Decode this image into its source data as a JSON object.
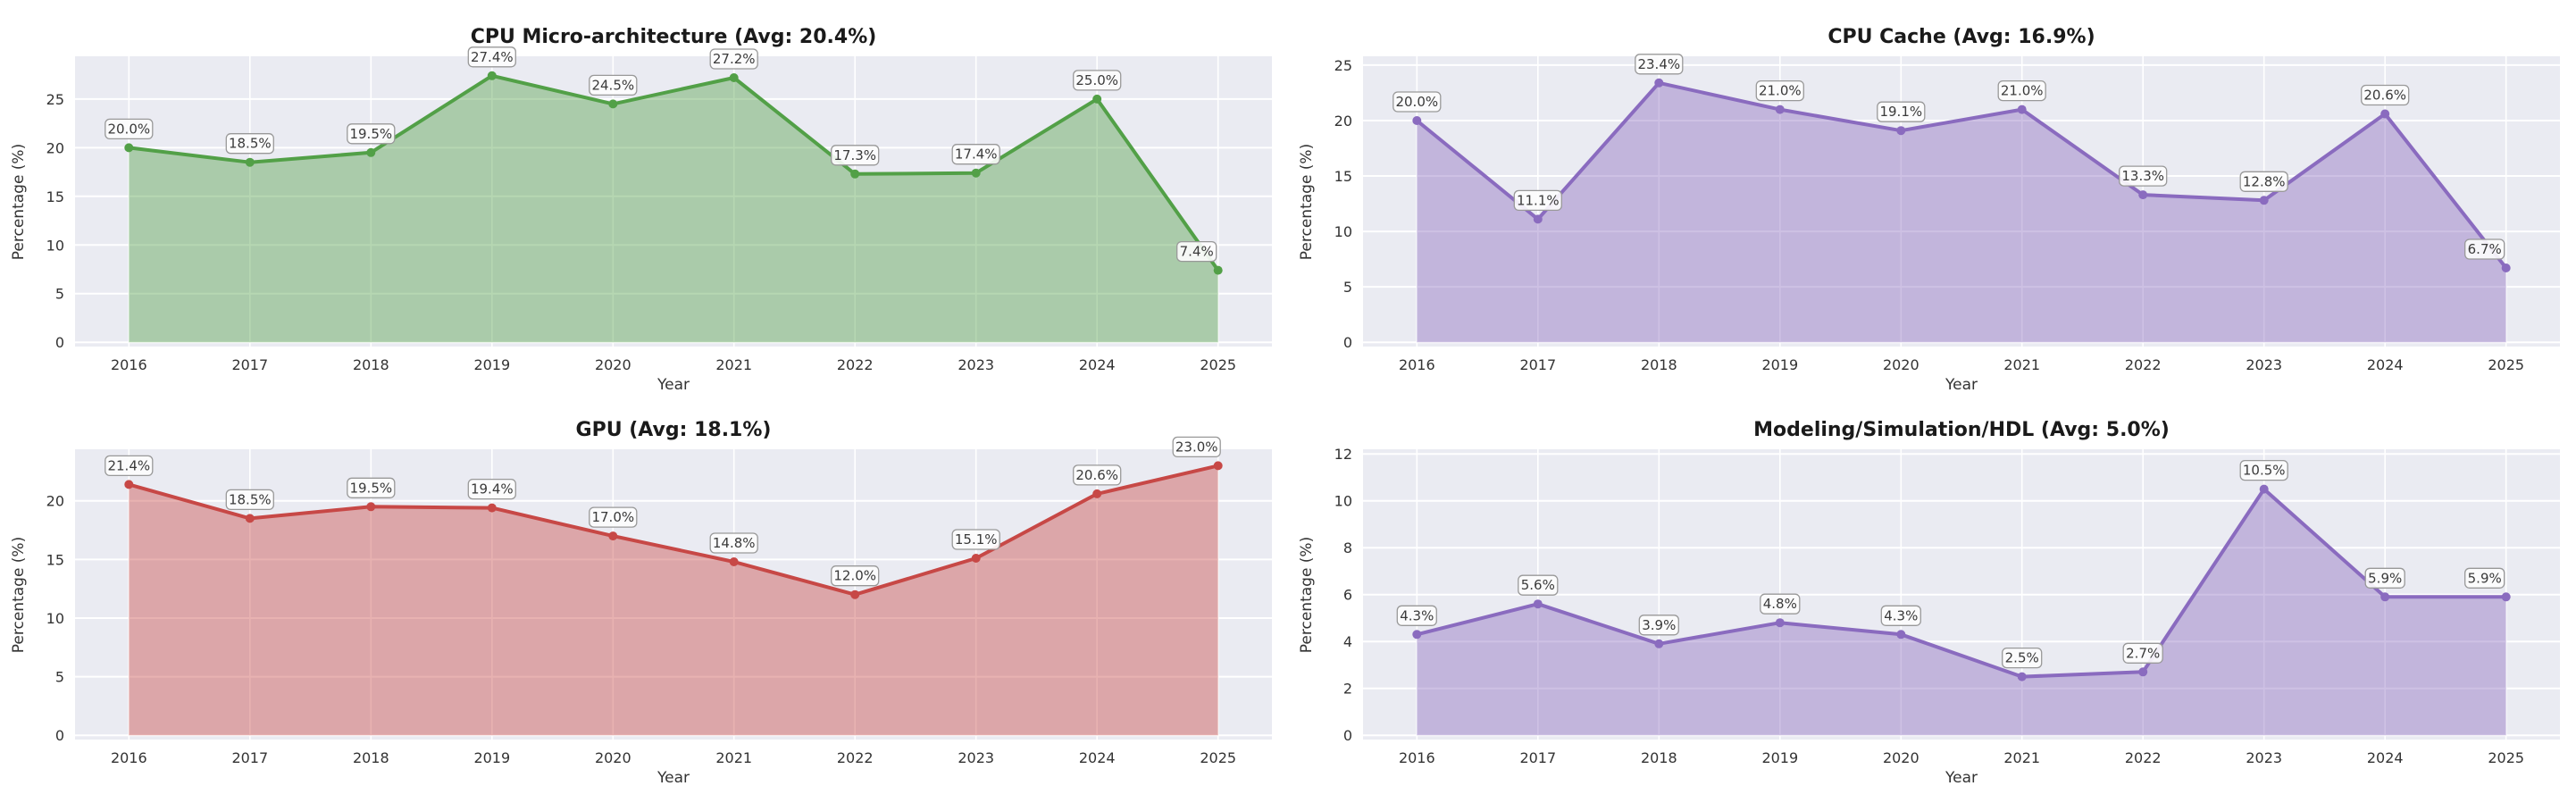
{
  "style": {
    "plot_background": "#eaebf2",
    "grid_color": "#ffffff",
    "label_box_fill": "#fdfdfd",
    "label_box_border": "#999999",
    "title_color": "#1a1a1a",
    "tick_color": "#333333"
  },
  "chart_data": [
    {
      "type": "area",
      "title": "CPU Micro-architecture (Avg: 20.4%)",
      "xlabel": "Year",
      "ylabel": "Percentage (%)",
      "categories": [
        "2016",
        "2017",
        "2018",
        "2019",
        "2020",
        "2021",
        "2022",
        "2023",
        "2024",
        "2025"
      ],
      "values": [
        20.0,
        18.5,
        19.5,
        27.4,
        24.5,
        27.2,
        17.3,
        17.4,
        25.0,
        7.4
      ],
      "point_labels": [
        "20.0%",
        "18.5%",
        "19.5%",
        "27.4%",
        "24.5%",
        "27.2%",
        "17.3%",
        "17.4%",
        "25.0%",
        "7.4%"
      ],
      "yticks": [
        0,
        5,
        10,
        15,
        20,
        25
      ],
      "ylim": [
        0,
        29.4
      ],
      "line_color": "#52a047",
      "fill_opacity": 0.42,
      "grid": true,
      "legend": "none"
    },
    {
      "type": "area",
      "title": "CPU Cache (Avg: 16.9%)",
      "xlabel": "Year",
      "ylabel": "Percentage (%)",
      "categories": [
        "2016",
        "2017",
        "2018",
        "2019",
        "2020",
        "2021",
        "2022",
        "2023",
        "2024",
        "2025"
      ],
      "values": [
        20.0,
        11.1,
        23.4,
        21.0,
        19.1,
        21.0,
        13.3,
        12.8,
        20.6,
        6.7
      ],
      "point_labels": [
        "20.0%",
        "11.1%",
        "23.4%",
        "21.0%",
        "19.1%",
        "21.0%",
        "13.3%",
        "12.8%",
        "20.6%",
        "6.7%"
      ],
      "yticks": [
        0,
        5,
        10,
        15,
        20,
        25
      ],
      "ylim": [
        0,
        25.8
      ],
      "line_color": "#8a6bbf",
      "fill_opacity": 0.42,
      "grid": true,
      "legend": "none"
    },
    {
      "type": "area",
      "title": "GPU (Avg: 18.1%)",
      "xlabel": "Year",
      "ylabel": "Percentage (%)",
      "categories": [
        "2016",
        "2017",
        "2018",
        "2019",
        "2020",
        "2021",
        "2022",
        "2023",
        "2024",
        "2025"
      ],
      "values": [
        21.4,
        18.5,
        19.5,
        19.4,
        17.0,
        14.8,
        12.0,
        15.1,
        20.6,
        23.0
      ],
      "point_labels": [
        "21.4%",
        "18.5%",
        "19.5%",
        "19.4%",
        "17.0%",
        "14.8%",
        "12.0%",
        "15.1%",
        "20.6%",
        "23.0%"
      ],
      "yticks": [
        0,
        5,
        10,
        15,
        20
      ],
      "ylim": [
        0,
        24.4
      ],
      "line_color": "#c74846",
      "fill_opacity": 0.42,
      "grid": true,
      "legend": "none"
    },
    {
      "type": "area",
      "title": "Modeling/Simulation/HDL (Avg: 5.0%)",
      "xlabel": "Year",
      "ylabel": "Percentage (%)",
      "categories": [
        "2016",
        "2017",
        "2018",
        "2019",
        "2020",
        "2021",
        "2022",
        "2023",
        "2024",
        "2025"
      ],
      "values": [
        4.3,
        5.6,
        3.9,
        4.8,
        4.3,
        2.5,
        2.7,
        10.5,
        5.9,
        5.9
      ],
      "point_labels": [
        "4.3%",
        "5.6%",
        "3.9%",
        "4.8%",
        "4.3%",
        "2.5%",
        "2.7%",
        "10.5%",
        "5.9%",
        "5.9%"
      ],
      "yticks": [
        0,
        2,
        4,
        6,
        8,
        10,
        12
      ],
      "ylim": [
        0,
        12.2
      ],
      "line_color": "#8a6bbf",
      "fill_opacity": 0.42,
      "grid": true,
      "legend": "none"
    }
  ]
}
